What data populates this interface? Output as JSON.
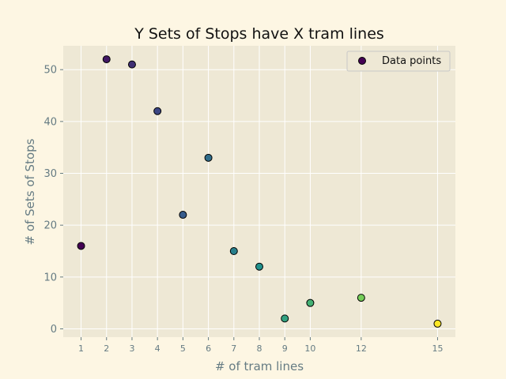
{
  "chart_data": {
    "type": "scatter",
    "title": "Y Sets of Stops have X tram lines",
    "xlabel": "# of tram lines",
    "ylabel": "# of Sets of Stops",
    "x": [
      1,
      2,
      3,
      4,
      5,
      6,
      7,
      8,
      9,
      10,
      12,
      15
    ],
    "y": [
      16,
      52,
      51,
      42,
      22,
      33,
      15,
      12,
      2,
      5,
      6,
      1
    ],
    "xticks": [
      1,
      2,
      3,
      4,
      5,
      6,
      7,
      8,
      9,
      10,
      12,
      15
    ],
    "yticks": [
      0,
      10,
      20,
      30,
      40,
      50
    ],
    "xlim": [
      0.3,
      15.7
    ],
    "ylim": [
      -1.6,
      54.6
    ],
    "grid": true,
    "colormap": "viridis",
    "background": "#fdf6e3",
    "plot_background": "#eee8d5",
    "marker_edge_color": "#000000",
    "legend": {
      "label": "Data points",
      "position": "top-right"
    }
  }
}
